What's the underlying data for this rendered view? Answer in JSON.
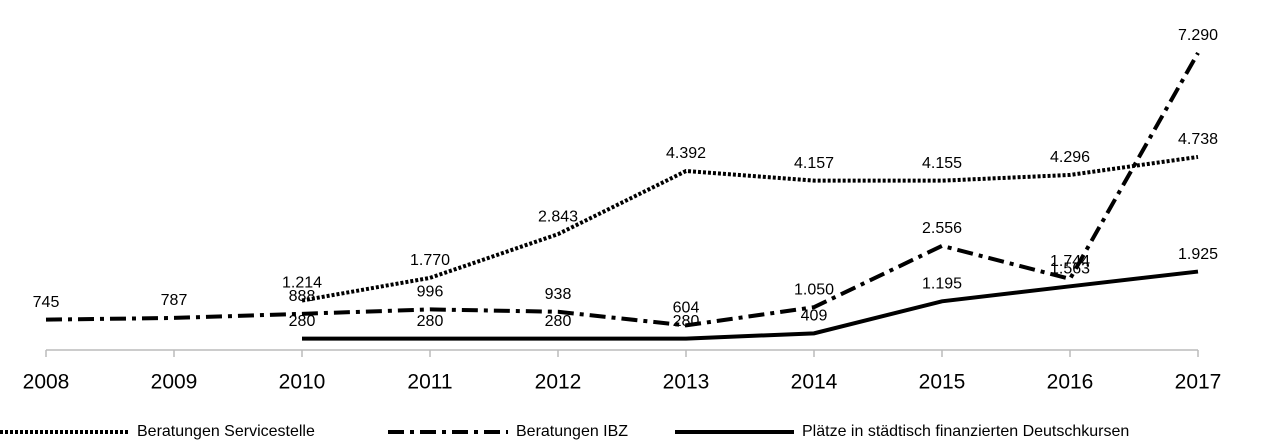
{
  "chart_data": {
    "type": "line",
    "categories": [
      "2008",
      "2009",
      "2010",
      "2011",
      "2012",
      "2013",
      "2014",
      "2015",
      "2016",
      "2017"
    ],
    "ylim": [
      0,
      8000
    ],
    "legend": "bottom",
    "series": [
      {
        "name": "Beratungen Servicestelle",
        "color": "#000000",
        "style": "dotted",
        "values": [
          null,
          null,
          1214,
          1770,
          2843,
          4392,
          4157,
          4155,
          4296,
          4738
        ],
        "value_labels": [
          null,
          null,
          "1.214",
          "1.770",
          "2.843",
          "4.392",
          "4.157",
          "4.155",
          "4.296",
          "4.738"
        ]
      },
      {
        "name": "Beratungen IBZ",
        "color": "#000000",
        "style": "dashdot",
        "values": [
          745,
          787,
          888,
          996,
          938,
          604,
          1050,
          2556,
          1744,
          7290
        ],
        "value_labels": [
          "745",
          "787",
          "888",
          "996",
          "938",
          "604",
          "1.050",
          "2.556",
          "1.744",
          "7.290"
        ]
      },
      {
        "name": "Plätze in städtisch finanzierten Deutschkursen",
        "color": "#000000",
        "style": "solid",
        "values": [
          null,
          null,
          280,
          280,
          280,
          280,
          409,
          1195,
          1563,
          1925
        ],
        "value_labels": [
          null,
          null,
          "280",
          "280",
          "280",
          "280",
          "409",
          "1.195",
          "1.563",
          "1.925"
        ]
      }
    ]
  }
}
